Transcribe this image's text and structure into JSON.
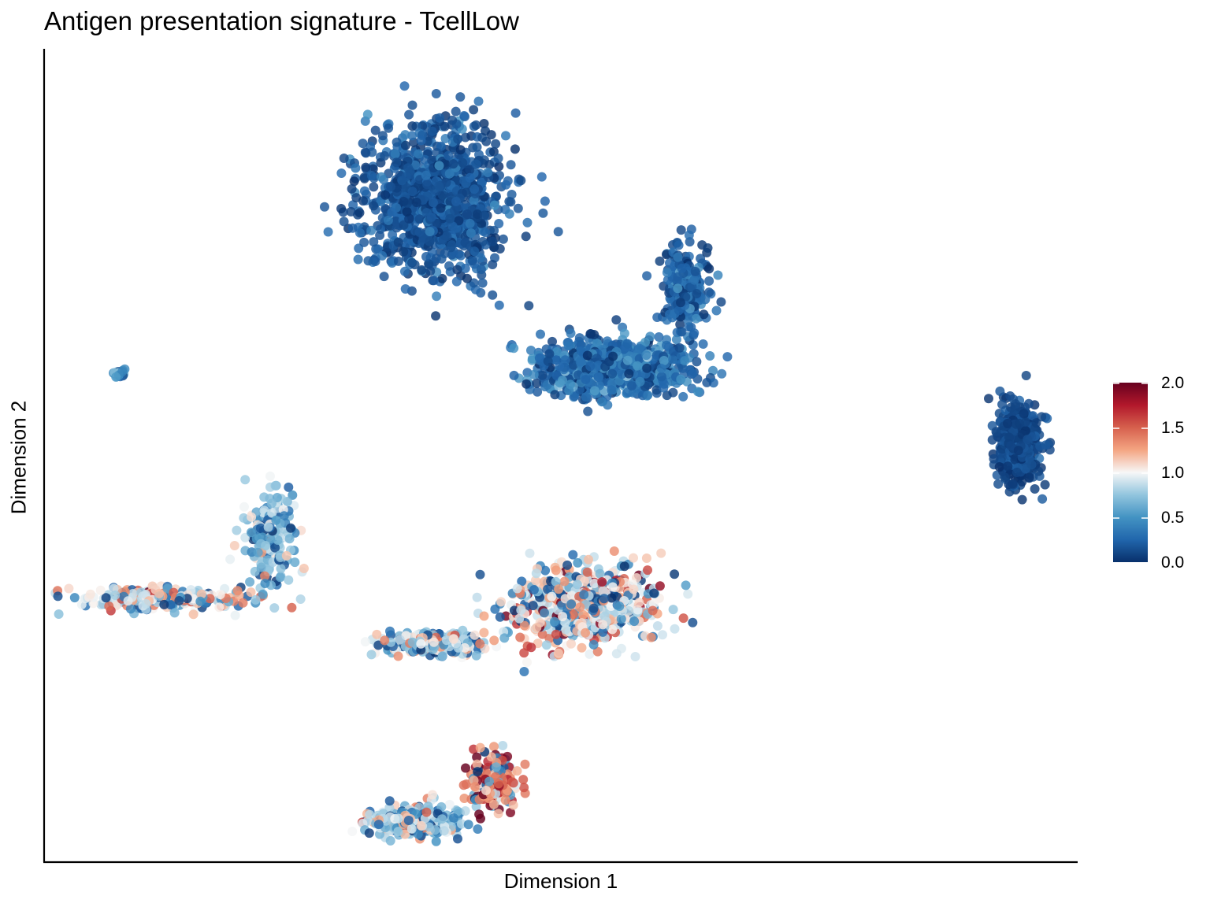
{
  "chart_data": {
    "type": "scatter",
    "title": "Antigen presentation signature - TcellLow",
    "xlabel": "Dimension 1",
    "ylabel": "Dimension 2",
    "x_ticks_shown": false,
    "y_ticks_shown": false,
    "grid": false,
    "color_scale": {
      "name": "RdBu (reversed)",
      "range": [
        0.0,
        2.0
      ],
      "ticks": [
        "2.0",
        "1.5",
        "1.0",
        "0.5",
        "0.0"
      ],
      "stops": [
        "#08306b",
        "#2166ac",
        "#4393c3",
        "#92c5de",
        "#f7f7f7",
        "#f4a582",
        "#d6604d",
        "#b2182b",
        "#67001f"
      ],
      "legend_position": "right"
    },
    "clusters": [
      {
        "label": "",
        "center": [
          5.3,
          8.6
        ],
        "spread": [
          1.0,
          1.15
        ],
        "n": 1100,
        "mean": 0.12,
        "sd": 0.15
      },
      {
        "label": "",
        "center": [
          7.7,
          5.9
        ],
        "spread": [
          1.05,
          0.45
        ],
        "n": 850,
        "mean": 0.22,
        "sd": 0.22
      },
      {
        "label": "",
        "center": [
          8.7,
          7.2
        ],
        "spread": [
          0.3,
          0.7
        ],
        "n": 260,
        "mean": 0.18,
        "sd": 0.18
      },
      {
        "label": "",
        "center": [
          13.2,
          4.7
        ],
        "spread": [
          0.3,
          0.65
        ],
        "n": 420,
        "mean": 0.08,
        "sd": 0.1
      },
      {
        "label": "",
        "center": [
          1.0,
          5.8
        ],
        "spread": [
          0.1,
          0.07
        ],
        "n": 20,
        "mean": 0.45,
        "sd": 0.25
      },
      {
        "label": "",
        "center": [
          3.1,
          3.2
        ],
        "spread": [
          0.35,
          0.75
        ],
        "n": 190,
        "mean": 0.6,
        "sd": 0.4
      },
      {
        "label": "",
        "center": [
          1.6,
          2.2
        ],
        "spread": [
          1.2,
          0.2
        ],
        "n": 230,
        "mean": 0.75,
        "sd": 0.5
      },
      {
        "label": "",
        "center": [
          7.3,
          2.1
        ],
        "spread": [
          1.0,
          0.6
        ],
        "n": 600,
        "mean": 0.8,
        "sd": 0.55
      },
      {
        "label": "",
        "center": [
          5.3,
          1.5
        ],
        "spread": [
          0.7,
          0.2
        ],
        "n": 230,
        "mean": 0.65,
        "sd": 0.45
      },
      {
        "label": "",
        "center": [
          5.0,
          -1.35
        ],
        "spread": [
          0.6,
          0.25
        ],
        "n": 330,
        "mean": 0.6,
        "sd": 0.45
      },
      {
        "label": "",
        "center": [
          6.1,
          -0.7
        ],
        "spread": [
          0.35,
          0.5
        ],
        "n": 200,
        "mean": 1.15,
        "sd": 0.55
      }
    ],
    "x_range": [
      0.0,
      14.0
    ],
    "y_range": [
      -2.0,
      11.0
    ]
  }
}
